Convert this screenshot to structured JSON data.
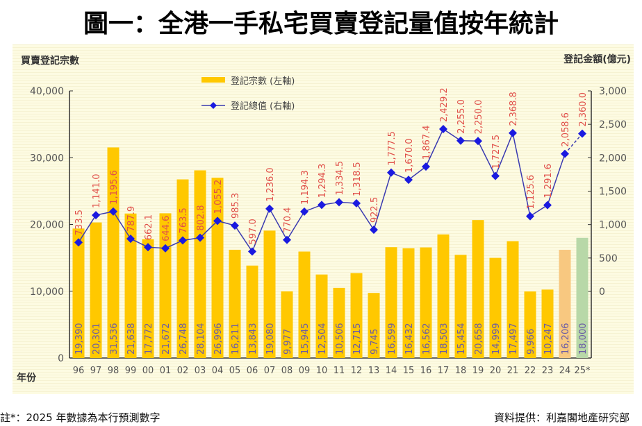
{
  "title": "圖一：全港一手私宅買賣登記量值按年統計",
  "footnote_left": "註*：2025 年數據為本行預測數字",
  "footnote_right": "資料提供：利嘉閣地產研究部",
  "chart_data": {
    "type": "bar+line",
    "title": "圖一：全港一手私宅買賣登記量值按年統計",
    "xlabel": "年份",
    "ylabel_left": "買賣登記宗數",
    "ylabel_right": "登記金額(億元)",
    "ylim_left": [
      0,
      40000
    ],
    "yticks_left": [
      0,
      10000,
      20000,
      30000,
      40000
    ],
    "ylim_right": [
      0,
      3000
    ],
    "yticks_right": [
      0,
      500,
      1000,
      1500,
      2000,
      2500,
      3000
    ],
    "legend_position": "top-center",
    "categories": [
      "96",
      "97",
      "98",
      "99",
      "00",
      "01",
      "02",
      "03",
      "04",
      "05",
      "06",
      "07",
      "08",
      "09",
      "10",
      "11",
      "12",
      "13",
      "14",
      "15",
      "16",
      "17",
      "18",
      "19",
      "20",
      "21",
      "22",
      "23",
      "24",
      "25*"
    ],
    "series": [
      {
        "name": "登記宗數 (左軸)",
        "type": "bar",
        "axis": "left",
        "color": "#ffc800",
        "highlight_colors": {
          "24": "#f8c880",
          "25*": "#b8d8a8"
        },
        "values": [
          19390,
          20301,
          31536,
          21638,
          17772,
          21672,
          26748,
          28104,
          26996,
          16211,
          13843,
          19080,
          9977,
          15945,
          12504,
          10506,
          12715,
          9745,
          16599,
          16432,
          16562,
          18503,
          15454,
          20658,
          14999,
          17497,
          9966,
          10247,
          16206,
          18000
        ],
        "labels": [
          "19,390",
          "20,301",
          "31,536",
          "21,638",
          "17,772",
          "21,672",
          "26,748",
          "28,104",
          "26,996",
          "16,211",
          "13,843",
          "19,080",
          "9,977",
          "15,945",
          "12,504",
          "10,506",
          "12,715",
          "9,745",
          "16,599",
          "16,432",
          "16,562",
          "18,503",
          "15,454",
          "20,658",
          "14,999",
          "17,497",
          "9,966",
          "10,247",
          "16,206",
          "18,000"
        ]
      },
      {
        "name": "登記總值 (右軸)",
        "type": "line",
        "axis": "right",
        "color": "#1a1ae0",
        "values": [
          733.5,
          1141.0,
          1195.6,
          787.9,
          662.1,
          644.6,
          763.5,
          802.8,
          1055.2,
          985.3,
          597.0,
          1236.0,
          770.4,
          1194.3,
          1294.3,
          1334.5,
          1318.5,
          922.5,
          1777.5,
          1670.0,
          1867.4,
          2429.2,
          2255.0,
          2250.0,
          1727.5,
          2368.8,
          1125.6,
          1291.6,
          2058.6,
          2360.0
        ],
        "labels": [
          "733.5",
          "1,141.0",
          "1,195.6",
          "787.9",
          "662.1",
          "644.6",
          "763.5",
          "802.8",
          "1,055.2",
          "985.3",
          "597.0",
          "1,236.0",
          "770.4",
          "1,194.3",
          "1,294.3",
          "1,334.5",
          "1,318.5",
          "922.5",
          "1,777.5",
          "1,670.0",
          "1,867.4",
          "2,429.2",
          "2,255.0",
          "2,250.0",
          "1,727.5",
          "2,368.8",
          "1,125.6",
          "1,291.6",
          "2,058.6",
          "2,360.0"
        ]
      }
    ]
  }
}
